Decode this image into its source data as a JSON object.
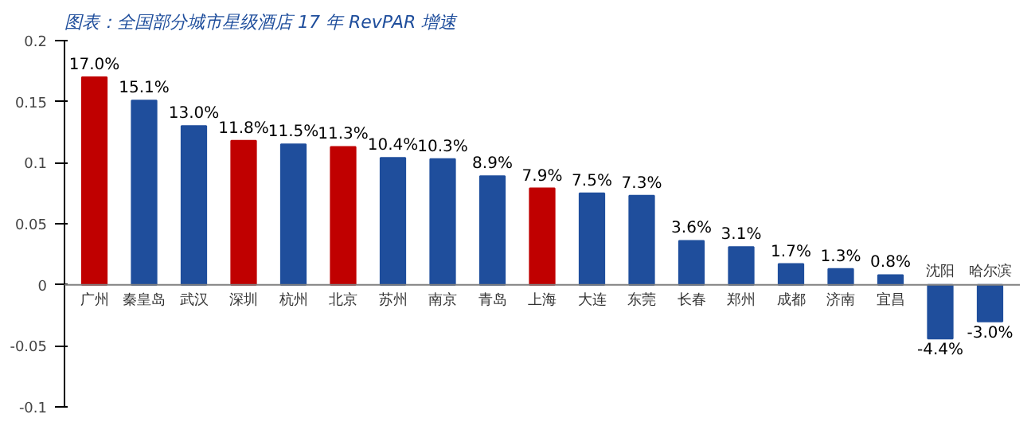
{
  "chart_data": {
    "type": "bar",
    "title": "图表：全国部分城市星级酒店 17 年 RevPAR 增速",
    "categories": [
      "广州",
      "秦皇岛",
      "武汉",
      "深圳",
      "杭州",
      "北京",
      "苏州",
      "南京",
      "青岛",
      "上海",
      "大连",
      "东莞",
      "长春",
      "郑州",
      "成都",
      "济南",
      "宜昌",
      "沈阳",
      "哈尔滨"
    ],
    "values": [
      0.17,
      0.151,
      0.13,
      0.118,
      0.115,
      0.113,
      0.104,
      0.103,
      0.089,
      0.079,
      0.075,
      0.073,
      0.036,
      0.031,
      0.017,
      0.013,
      0.008,
      -0.044,
      -0.03
    ],
    "colors": [
      "#c00000",
      "#1f4e9c",
      "#1f4e9c",
      "#c00000",
      "#1f4e9c",
      "#c00000",
      "#1f4e9c",
      "#1f4e9c",
      "#1f4e9c",
      "#c00000",
      "#1f4e9c",
      "#1f4e9c",
      "#1f4e9c",
      "#1f4e9c",
      "#1f4e9c",
      "#1f4e9c",
      "#1f4e9c",
      "#1f4e9c",
      "#1f4e9c"
    ],
    "value_labels": [
      "17.0%",
      "15.1%",
      "13.0%",
      "11.8%",
      "11.5%",
      "11.3%",
      "10.4%",
      "10.3%",
      "8.9%",
      "7.9%",
      "7.5%",
      "7.3%",
      "3.6%",
      "3.1%",
      "1.7%",
      "1.3%",
      "0.8%",
      "-4.4%",
      "-3.0%"
    ],
    "ylim": [
      -0.1,
      0.2
    ],
    "yticks": [
      -0.1,
      -0.05,
      0,
      0.05,
      0.1,
      0.15,
      0.2
    ],
    "grid": false
  }
}
